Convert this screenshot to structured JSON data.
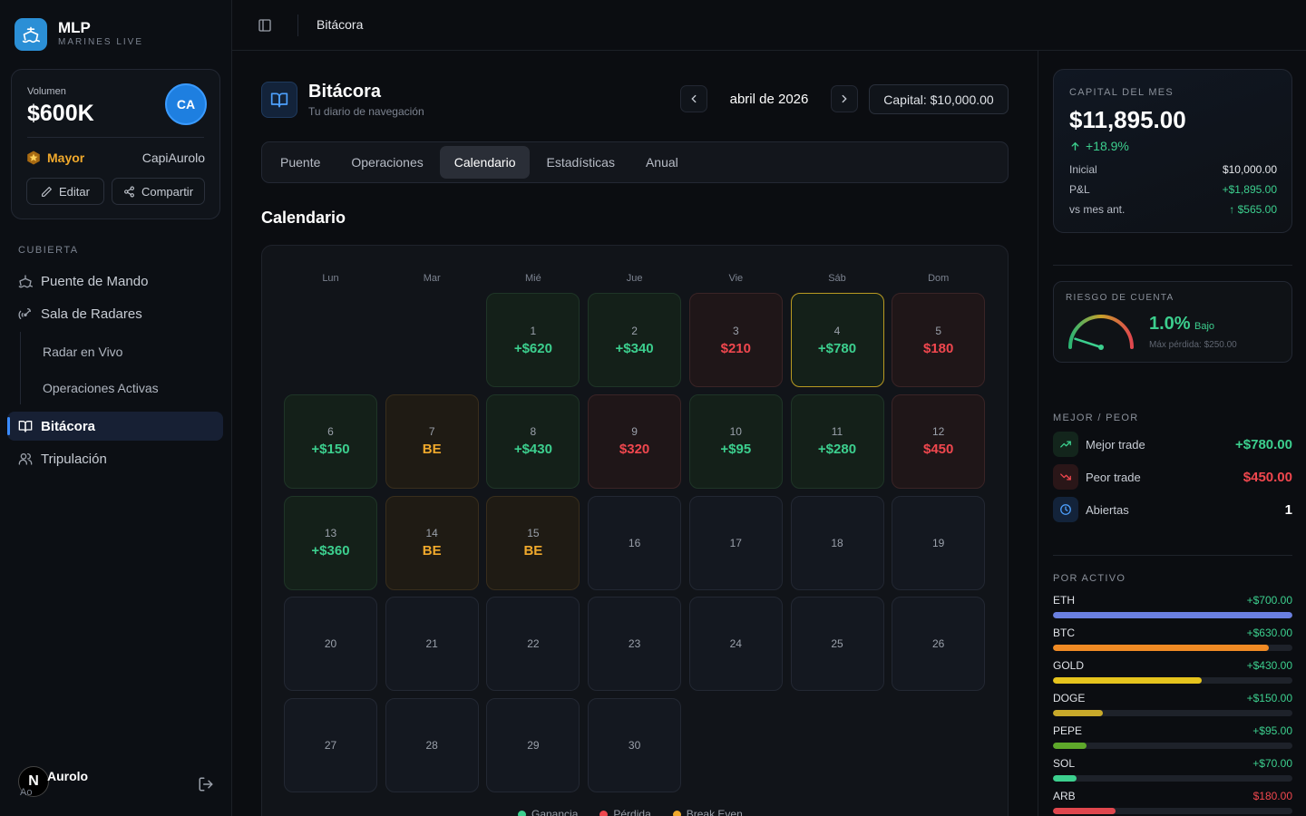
{
  "brand": {
    "name": "MLP",
    "subtitle": "MARINES LIVE"
  },
  "volume_card": {
    "label": "Volumen",
    "value": "$600K",
    "avatar_initials": "CA",
    "rank": "Mayor",
    "username": "CapiAurolo",
    "edit_label": "Editar",
    "share_label": "Compartir"
  },
  "nav": {
    "section": "CUBIERTA",
    "items": [
      {
        "label": "Puente de Mando",
        "icon": "ship-icon"
      },
      {
        "label": "Sala de Radares",
        "icon": "radar-icon"
      },
      {
        "label": "Bitácora",
        "icon": "book-icon",
        "active": true
      },
      {
        "label": "Tripulación",
        "icon": "users-icon"
      }
    ],
    "sub_items": [
      "Radar en Vivo",
      "Operaciones Activas"
    ]
  },
  "footer_user": {
    "avatar": "N",
    "name": "Aurolo",
    "sub": "Ao"
  },
  "topbar": {
    "title": "Bitácora"
  },
  "page": {
    "title": "Bitácora",
    "subtitle": "Tu diario de navegación",
    "month": "abril de 2026",
    "capital": "Capital: $10,000.00"
  },
  "tabs": [
    {
      "label": "Puente"
    },
    {
      "label": "Operaciones"
    },
    {
      "label": "Calendario",
      "active": true
    },
    {
      "label": "Estadísticas"
    },
    {
      "label": "Anual"
    }
  ],
  "calendar": {
    "title": "Calendario",
    "weekdays": [
      "Lun",
      "Mar",
      "Mié",
      "Jue",
      "Vie",
      "Sáb",
      "Dom"
    ],
    "start_offset": 2,
    "days": [
      {
        "n": "1",
        "pnl": "+$620",
        "status": "win"
      },
      {
        "n": "2",
        "pnl": "+$340",
        "status": "win"
      },
      {
        "n": "3",
        "pnl": "$210",
        "status": "loss"
      },
      {
        "n": "4",
        "pnl": "+$780",
        "status": "win",
        "today": true
      },
      {
        "n": "5",
        "pnl": "$180",
        "status": "loss"
      },
      {
        "n": "6",
        "pnl": "+$150",
        "status": "win"
      },
      {
        "n": "7",
        "pnl": "BE",
        "status": "be"
      },
      {
        "n": "8",
        "pnl": "+$430",
        "status": "win"
      },
      {
        "n": "9",
        "pnl": "$320",
        "status": "loss"
      },
      {
        "n": "10",
        "pnl": "+$95",
        "status": "win"
      },
      {
        "n": "11",
        "pnl": "+$280",
        "status": "win"
      },
      {
        "n": "12",
        "pnl": "$450",
        "status": "loss"
      },
      {
        "n": "13",
        "pnl": "+$360",
        "status": "win"
      },
      {
        "n": "14",
        "pnl": "BE",
        "status": "be"
      },
      {
        "n": "15",
        "pnl": "BE",
        "status": "be"
      },
      {
        "n": "16",
        "pnl": "",
        "status": "none"
      },
      {
        "n": "17",
        "pnl": "",
        "status": "none"
      },
      {
        "n": "18",
        "pnl": "",
        "status": "none"
      },
      {
        "n": "19",
        "pnl": "",
        "status": "none"
      },
      {
        "n": "20",
        "pnl": "",
        "status": "none"
      },
      {
        "n": "21",
        "pnl": "",
        "status": "none"
      },
      {
        "n": "22",
        "pnl": "",
        "status": "none"
      },
      {
        "n": "23",
        "pnl": "",
        "status": "none"
      },
      {
        "n": "24",
        "pnl": "",
        "status": "none"
      },
      {
        "n": "25",
        "pnl": "",
        "status": "none"
      },
      {
        "n": "26",
        "pnl": "",
        "status": "none"
      },
      {
        "n": "27",
        "pnl": "",
        "status": "none"
      },
      {
        "n": "28",
        "pnl": "",
        "status": "none"
      },
      {
        "n": "29",
        "pnl": "",
        "status": "none"
      },
      {
        "n": "30",
        "pnl": "",
        "status": "none"
      }
    ],
    "legend": [
      {
        "label": "Ganancia",
        "color": "#3ccf8e"
      },
      {
        "label": "Pérdida",
        "color": "#f0474e"
      },
      {
        "label": "Break Even",
        "color": "#f0a92c"
      }
    ]
  },
  "capital_card": {
    "label": "CAPITAL DEL MES",
    "value": "$11,895.00",
    "change": "+18.9%",
    "rows": [
      {
        "label": "Inicial",
        "value": "$10,000.00",
        "tone": "neutral"
      },
      {
        "label": "P&L",
        "value": "+$1,895.00",
        "tone": "green"
      },
      {
        "label": "vs mes ant.",
        "value": "↑ $565.00",
        "tone": "green"
      }
    ]
  },
  "risk": {
    "label": "RIESGO DE CUENTA",
    "value": "1.0%",
    "level": "Bajo",
    "max_loss": "Máx pérdida: $250.00",
    "gauge_fraction": 0.1
  },
  "best_worst": {
    "label": "MEJOR / PEOR",
    "rows": [
      {
        "label": "Mejor trade",
        "value": "+$780.00",
        "icon": "trend-up-icon",
        "color": "#3ccf8e",
        "bg": "#13251c"
      },
      {
        "label": "Peor trade",
        "value": "$450.00",
        "icon": "trend-down-icon",
        "color": "#f0474e",
        "bg": "#2a1618"
      },
      {
        "label": "Abiertas",
        "value": "1",
        "icon": "clock-icon",
        "color": "#ffffff",
        "bg": "#13233a"
      }
    ]
  },
  "assets": {
    "label": "POR ACTIVO",
    "items": [
      {
        "name": "ETH",
        "value": "+$700.00",
        "fraction": 1.0,
        "color": "#6a7fe0",
        "neg": false
      },
      {
        "name": "BTC",
        "value": "+$630.00",
        "fraction": 0.9,
        "color": "#f08a24",
        "neg": false
      },
      {
        "name": "GOLD",
        "value": "+$430.00",
        "fraction": 0.62,
        "color": "#e6c41d",
        "neg": false
      },
      {
        "name": "DOGE",
        "value": "+$150.00",
        "fraction": 0.21,
        "color": "#c8a92a",
        "neg": false
      },
      {
        "name": "PEPE",
        "value": "+$95.00",
        "fraction": 0.14,
        "color": "#5ea82a",
        "neg": false
      },
      {
        "name": "SOL",
        "value": "+$70.00",
        "fraction": 0.1,
        "color": "#3ccf8e",
        "neg": false
      },
      {
        "name": "ARB",
        "value": "$180.00",
        "fraction": 0.26,
        "color": "#e0474e",
        "neg": true
      }
    ]
  }
}
